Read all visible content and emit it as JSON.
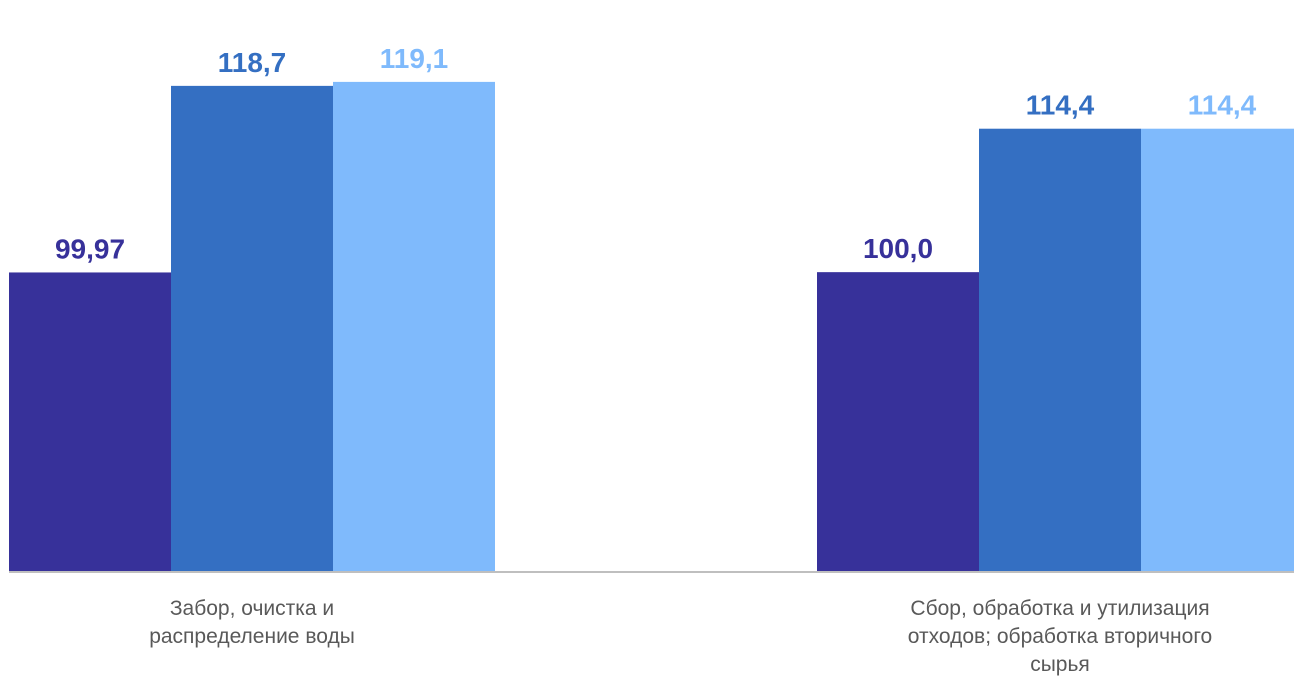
{
  "chart_data": {
    "type": "bar",
    "categories": [
      [
        "Забор, очистка и",
        "распределение воды"
      ],
      [
        "Сбор, обработка и утилизация",
        "отходов; обработка вторичного",
        "сырья"
      ]
    ],
    "series": [
      {
        "values": [
          99.97,
          100.0
        ],
        "labels": [
          "99,97",
          "100,0"
        ],
        "color": "#37319A"
      },
      {
        "values": [
          118.7,
          114.4
        ],
        "labels": [
          "118,7",
          "114,4"
        ],
        "color": "#346FC2"
      },
      {
        "values": [
          119.1,
          114.4
        ],
        "labels": [
          "119,1",
          "114,4"
        ],
        "color": "#7FBAFC"
      }
    ],
    "ylim": [
      70,
      122
    ],
    "grid": false,
    "legend": "none",
    "axis_color": "#BFBFBF"
  }
}
